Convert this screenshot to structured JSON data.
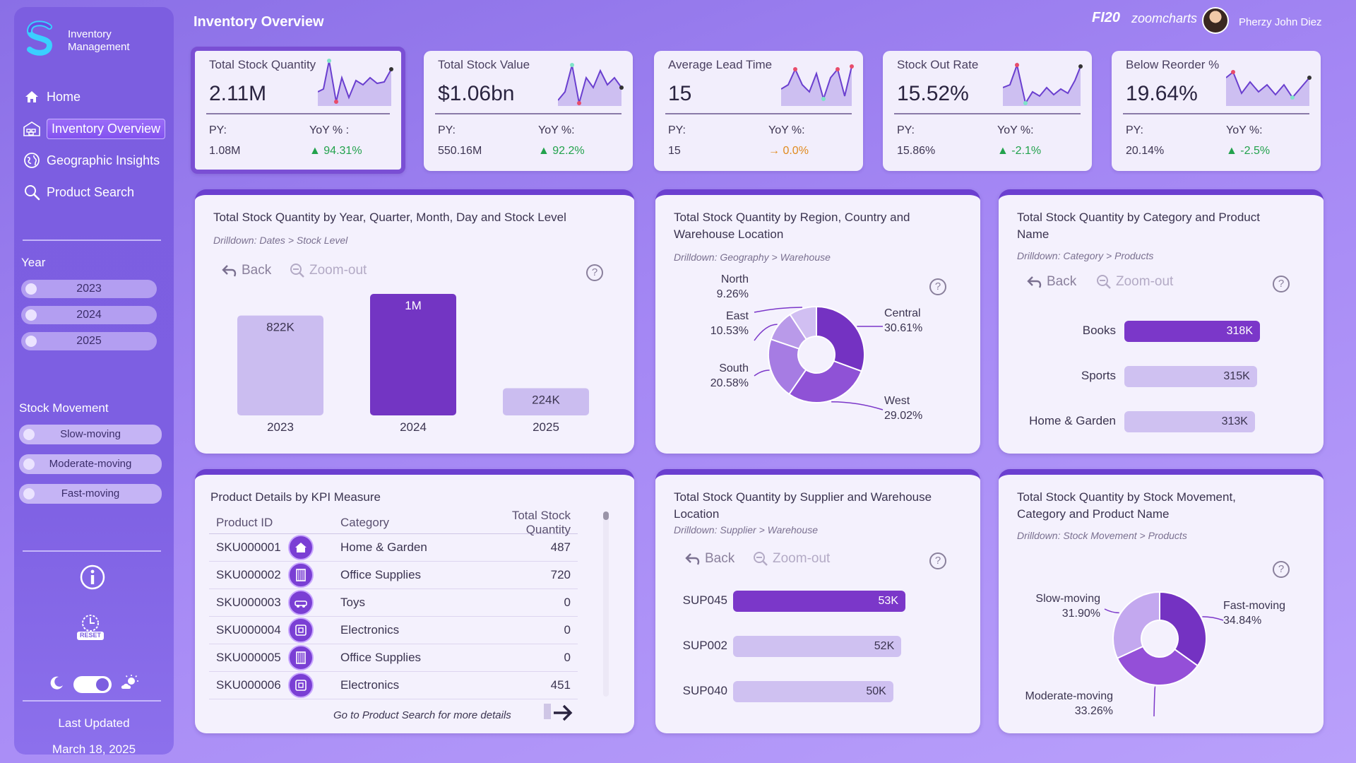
{
  "app": {
    "name": "Inventory Management",
    "page_title": "Inventory Overview",
    "brand_left": "FI20",
    "brand_right": "zoomcharts",
    "user_name": "Pherzy John Diez"
  },
  "sidebar": {
    "nav": [
      {
        "label": "Home",
        "icon": "home-icon"
      },
      {
        "label": "Inventory Overview",
        "icon": "warehouse-icon",
        "active": true
      },
      {
        "label": "Geographic Insights",
        "icon": "globe-icon"
      },
      {
        "label": "Product Search",
        "icon": "search-icon"
      }
    ],
    "year_heading": "Year",
    "years": [
      "2023",
      "2024",
      "2025"
    ],
    "movement_heading": "Stock Movement",
    "movements": [
      "Slow-moving",
      "Moderate-moving",
      "Fast-moving"
    ],
    "reset_label": "RESET",
    "last_updated_label": "Last Updated",
    "last_updated_value": "March 18, 2025"
  },
  "kpis": [
    {
      "title": "Total Stock Quantity",
      "value": "2.11M",
      "py_label": "PY:",
      "py": "1.08M",
      "yoy_label": "YoY % :",
      "yoy": "94.31%",
      "trend": "up"
    },
    {
      "title": "Total Stock Value",
      "value": "$1.06bn",
      "py_label": "PY:",
      "py": "550.16M",
      "yoy_label": "YoY %:",
      "yoy": "92.2%",
      "trend": "up"
    },
    {
      "title": "Average Lead Time",
      "value": "15",
      "py_label": "PY:",
      "py": "15",
      "yoy_label": "YoY %:",
      "yoy": "0.0%",
      "trend": "flat"
    },
    {
      "title": "Stock Out Rate",
      "value": "15.52%",
      "py_label": "PY:",
      "py": "15.86%",
      "yoy_label": "YoY %:",
      "yoy": "-2.1%",
      "trend": "up"
    },
    {
      "title": "Below Reorder %",
      "value": "19.64%",
      "py_label": "PY:",
      "py": "20.14%",
      "yoy_label": "YoY %:",
      "yoy": "-2.5%",
      "trend": "up"
    }
  ],
  "panels": {
    "by_year": {
      "title": "Total Stock Quantity by Year, Quarter, Month, Day and Stock Level",
      "subtitle": "Drilldown: Dates > Stock Level",
      "back": "Back",
      "zoom_out": "Zoom-out"
    },
    "by_region": {
      "title_line1": "Total Stock Quantity by Region, Country and",
      "title_line2": "Warehouse Location",
      "subtitle": "Drilldown: Geography > Warehouse"
    },
    "by_category": {
      "title_line1": "Total Stock Quantity by Category and Product",
      "title_line2": "Name",
      "subtitle": "Drilldown: Category > Products",
      "back": "Back",
      "zoom_out": "Zoom-out"
    },
    "product_details": {
      "title": "Product Details by KPI Measure",
      "columns": [
        "Product ID",
        "Category",
        "Total Stock Quantity"
      ],
      "rows": [
        {
          "id": "SKU000001",
          "icon": "home-garden-icon",
          "category": "Home & Garden",
          "qty": "487"
        },
        {
          "id": "SKU000002",
          "icon": "office-supplies-icon",
          "category": "Office Supplies",
          "qty": "720"
        },
        {
          "id": "SKU000003",
          "icon": "toys-icon",
          "category": "Toys",
          "qty": "0"
        },
        {
          "id": "SKU000004",
          "icon": "electronics-icon",
          "category": "Electronics",
          "qty": "0"
        },
        {
          "id": "SKU000005",
          "icon": "office-supplies-icon",
          "category": "Office Supplies",
          "qty": "0"
        },
        {
          "id": "SKU000006",
          "icon": "electronics-icon",
          "category": "Electronics",
          "qty": "451"
        }
      ],
      "footer": "Go to Product Search for more details"
    },
    "by_supplier": {
      "title_line1": "Total Stock Quantity by Supplier and Warehouse",
      "title_line2": "Location",
      "subtitle": "Drilldown: Supplier > Warehouse",
      "back": "Back",
      "zoom_out": "Zoom-out"
    },
    "by_movement": {
      "title_line1": "Total Stock Quantity by Stock Movement,",
      "title_line2": "Category and Product Name",
      "subtitle": "Drilldown: Stock Movement > Products"
    }
  },
  "chart_data": [
    {
      "type": "bar",
      "categories": [
        "2023",
        "2024",
        "2025"
      ],
      "values": [
        822000,
        1000000,
        224000
      ],
      "data_labels": [
        "822K",
        "1M",
        "224K"
      ],
      "highlighted": "2024",
      "colors": {
        "normal": "#cbbdf0",
        "highlight": "#7335c3"
      }
    },
    {
      "type": "pie",
      "donut": true,
      "categories": [
        "Central",
        "West",
        "South",
        "East",
        "North"
      ],
      "values": [
        30.61,
        29.02,
        20.58,
        10.53,
        9.26
      ],
      "labels": [
        "30.61%",
        "29.02%",
        "20.58%",
        "10.53%",
        "9.26%"
      ]
    },
    {
      "type": "bar",
      "orientation": "horizontal",
      "categories": [
        "Books",
        "Sports",
        "Home & Garden"
      ],
      "values": [
        318000,
        315000,
        313000
      ],
      "data_labels": [
        "318K",
        "315K",
        "313K"
      ]
    },
    {
      "type": "bar",
      "orientation": "horizontal",
      "categories": [
        "SUP045",
        "SUP002",
        "SUP040"
      ],
      "values": [
        53000,
        52000,
        50000
      ],
      "data_labels": [
        "53K",
        "52K",
        "50K"
      ]
    },
    {
      "type": "pie",
      "donut": true,
      "categories": [
        "Fast-moving",
        "Moderate-moving",
        "Slow-moving"
      ],
      "values": [
        34.84,
        33.26,
        31.9
      ],
      "labels": [
        "34.84%",
        "33.26%",
        "31.90%"
      ]
    }
  ]
}
